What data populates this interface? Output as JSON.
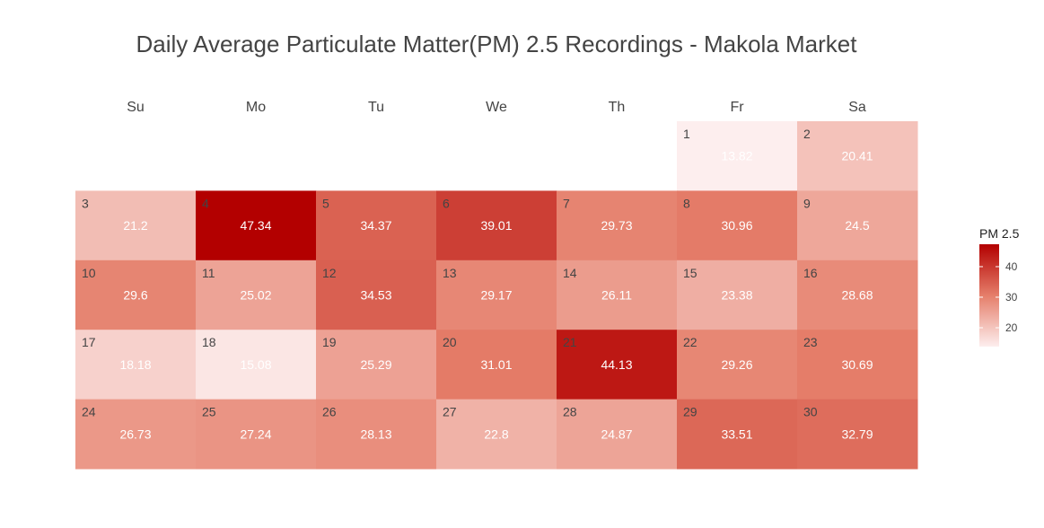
{
  "chart_data": {
    "type": "heatmap",
    "title": "Daily Average Particulate Matter(PM) 2.5 Recordings - Makola Market",
    "weekdays": [
      "Su",
      "Mo",
      "Tu",
      "We",
      "Th",
      "Fr",
      "Sa"
    ],
    "first_weekday_index": 5,
    "days": [
      {
        "day": "1",
        "value": 13.82
      },
      {
        "day": "2",
        "value": 20.41
      },
      {
        "day": "3",
        "value": 21.2
      },
      {
        "day": "4",
        "value": 47.34
      },
      {
        "day": "5",
        "value": 34.37
      },
      {
        "day": "6",
        "value": 39.01
      },
      {
        "day": "7",
        "value": 29.73
      },
      {
        "day": "8",
        "value": 30.96
      },
      {
        "day": "9",
        "value": 24.5
      },
      {
        "day": "10",
        "value": 29.6
      },
      {
        "day": "11",
        "value": 25.02
      },
      {
        "day": "12",
        "value": 34.53
      },
      {
        "day": "13",
        "value": 29.17
      },
      {
        "day": "14",
        "value": 26.11
      },
      {
        "day": "15",
        "value": 23.38
      },
      {
        "day": "16",
        "value": 28.68
      },
      {
        "day": "17",
        "value": 18.18
      },
      {
        "day": "18",
        "value": 15.08
      },
      {
        "day": "19",
        "value": 25.29
      },
      {
        "day": "20",
        "value": 31.01
      },
      {
        "day": "21",
        "value": 44.13
      },
      {
        "day": "22",
        "value": 29.26
      },
      {
        "day": "23",
        "value": 30.69
      },
      {
        "day": "24",
        "value": 26.73
      },
      {
        "day": "25",
        "value": 27.24
      },
      {
        "day": "26",
        "value": 28.13
      },
      {
        "day": "27",
        "value": 22.8
      },
      {
        "day": "28",
        "value": 24.87
      },
      {
        "day": "29",
        "value": 33.51
      },
      {
        "day": "30",
        "value": 32.79
      }
    ],
    "legend": {
      "title": "PM 2.5",
      "ticks": [
        "20",
        "30",
        "40"
      ],
      "placement": "right"
    },
    "color_low": "#fdeeee",
    "color_high": "#b30000",
    "value_range": [
      13.82,
      47.34
    ],
    "grid": false
  }
}
